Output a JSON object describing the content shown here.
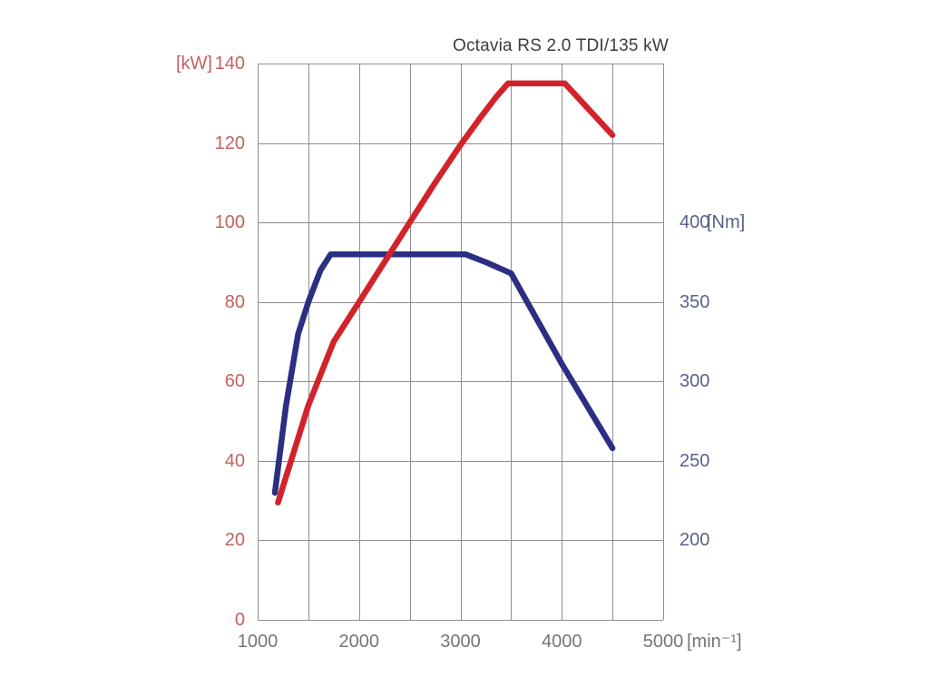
{
  "chart_data": {
    "type": "line",
    "title": "Octavia RS 2.0 TDI/135 kW",
    "colors": {
      "title": "#3c3c3c",
      "grid": "#8f8f8f",
      "background": "#ffffff"
    },
    "x_axis": {
      "unit": "[min⁻¹]",
      "min": 1000,
      "max": 5000,
      "ticks": [
        1000,
        2000,
        3000,
        4000,
        5000
      ],
      "gridline_step": 500,
      "tick_color": "#757575"
    },
    "y_left": {
      "unit": "[kW]",
      "min": 0,
      "max": 140,
      "ticks": [
        0,
        20,
        40,
        60,
        80,
        100,
        120,
        140
      ],
      "gridline_step": 20,
      "tick_color": "#c6605f"
    },
    "y_right": {
      "unit": "[Nm]",
      "min": 150,
      "max": 500,
      "ticks": [
        200,
        250,
        300,
        350,
        400
      ],
      "unit_next_to_tick": 400,
      "tick_color": "#5a5f88"
    },
    "series": [
      {
        "name": "torque-nm",
        "axis": "right",
        "color": "#2b2f82",
        "width": 6.5,
        "points": [
          [
            1170,
            230
          ],
          [
            1280,
            285
          ],
          [
            1400,
            330
          ],
          [
            1500,
            350
          ],
          [
            1620,
            370
          ],
          [
            1720,
            380
          ],
          [
            3050,
            380
          ],
          [
            3250,
            375
          ],
          [
            3500,
            368
          ],
          [
            4000,
            311
          ],
          [
            4500,
            258
          ]
        ]
      },
      {
        "name": "power-kw",
        "axis": "left",
        "color": "#d2232a",
        "width": 6.5,
        "points": [
          [
            1200,
            29.5
          ],
          [
            1500,
            54
          ],
          [
            1750,
            70
          ],
          [
            2000,
            80
          ],
          [
            2250,
            90
          ],
          [
            2500,
            100
          ],
          [
            2750,
            110
          ],
          [
            3000,
            119.5
          ],
          [
            3200,
            126.5
          ],
          [
            3350,
            131.5
          ],
          [
            3470,
            135
          ],
          [
            4030,
            135
          ],
          [
            4500,
            122
          ]
        ]
      }
    ]
  }
}
